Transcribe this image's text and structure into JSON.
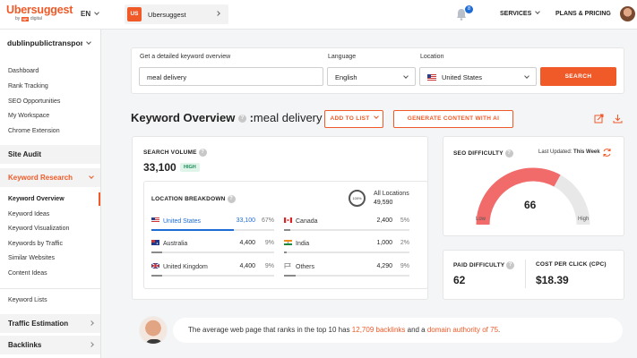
{
  "header": {
    "brand": "Ubersuggest",
    "brand_by": "by",
    "brand_np": "NP",
    "brand_digital": "digital",
    "language": "EN",
    "project_badge": "US",
    "project_name": "Ubersuggest",
    "notifications_count": "8",
    "services": "SERVICES",
    "plans": "PLANS & PRICING"
  },
  "sidebar": {
    "project": "dublinpublictransport",
    "items_top": [
      "Dashboard",
      "Rank Tracking",
      "SEO Opportunities",
      "My Workspace",
      "Chrome Extension"
    ],
    "site_audit": "Site Audit",
    "keyword_research": "Keyword Research",
    "kr_items": [
      "Keyword Overview",
      "Keyword Ideas",
      "Keyword Visualization",
      "Keywords by Traffic",
      "Similar Websites",
      "Content Ideas"
    ],
    "keyword_lists": "Keyword Lists",
    "traffic_estimation": "Traffic Estimation",
    "backlinks": "Backlinks"
  },
  "search": {
    "keyword_label": "Get a detailed keyword overview",
    "keyword_value": "meal delivery",
    "language_label": "Language",
    "language_value": "English",
    "location_label": "Location",
    "location_value": "United States",
    "button": "SEARCH"
  },
  "title": {
    "text": "Keyword Overview",
    "colon": ":",
    "keyword": "meal delivery",
    "add_to_list": "ADD TO LIST",
    "generate": "GENERATE CONTENT WITH AI"
  },
  "volume": {
    "label": "SEARCH VOLUME",
    "value": "33,100",
    "level": "HIGH"
  },
  "location_breakdown": {
    "label": "LOCATION BREAKDOWN",
    "ring": "100%",
    "all_label": "All Locations",
    "all_value": "49,590",
    "rows": [
      {
        "country": "United States",
        "value": "33,100",
        "pct": "67%",
        "fill": 0.67
      },
      {
        "country": "Australia",
        "value": "4,400",
        "pct": "9%",
        "fill": 0.09
      },
      {
        "country": "United Kingdom",
        "value": "4,400",
        "pct": "9%",
        "fill": 0.09
      },
      {
        "country": "Canada",
        "value": "2,400",
        "pct": "5%",
        "fill": 0.05
      },
      {
        "country": "India",
        "value": "1,000",
        "pct": "2%",
        "fill": 0.02
      },
      {
        "country": "Others",
        "value": "4,290",
        "pct": "9%",
        "fill": 0.09
      }
    ]
  },
  "seo_difficulty": {
    "label": "SEO DIFFICULTY",
    "updated_label": "Last Updated:",
    "updated_value": "This Week",
    "value": "66",
    "fraction": 0.66,
    "low": "Low",
    "high": "High",
    "color": "#f26b6b"
  },
  "paid": {
    "label": "PAID DIFFICULTY",
    "value": "62"
  },
  "cpc": {
    "label": "COST PER CLICK (CPC)",
    "value": "$18.39"
  },
  "banner": {
    "t1": "The average web page that ranks in the top 10 has ",
    "backlinks": "12,709 backlinks",
    "t2": " and a ",
    "authority": "domain authority of 75",
    "t3": "."
  }
}
